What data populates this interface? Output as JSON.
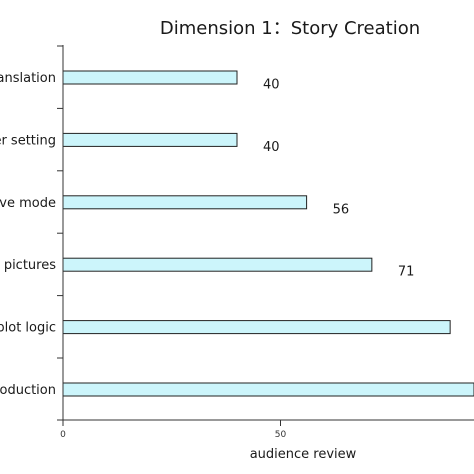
{
  "chart_data": {
    "type": "bar",
    "orientation": "horizontal",
    "title": "Dimension 1：Story Creation",
    "xlabel": "audience review",
    "ylabel": "",
    "categories": [
      "anslation",
      "er setting",
      "ve mode",
      "l pictures",
      "plot logic",
      "roduction"
    ],
    "values": [
      40,
      40,
      56,
      71,
      89,
      95
    ],
    "data_labels": [
      "40",
      "40",
      "56",
      "71",
      "",
      ""
    ],
    "xticks": [
      "0",
      "50"
    ],
    "xlim": [
      0,
      95
    ],
    "bar_color": "#ccf5fb",
    "grid": false
  }
}
